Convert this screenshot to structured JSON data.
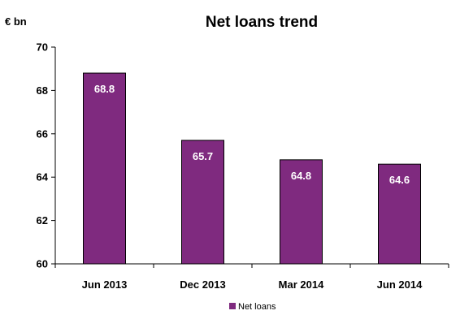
{
  "chart_data": {
    "type": "bar",
    "title": "Net loans trend",
    "unit_label": "€ bn",
    "categories": [
      "Jun 2013",
      "Dec 2013",
      "Mar 2014",
      "Jun 2014"
    ],
    "series": [
      {
        "name": "Net loans",
        "values": [
          68.8,
          65.7,
          64.8,
          64.6
        ],
        "color": "#7F2A7F"
      }
    ],
    "data_labels": [
      "68.8",
      "65.7",
      "64.8",
      "64.6"
    ],
    "ylim": [
      60,
      70
    ],
    "yticks": [
      "60",
      "62",
      "64",
      "66",
      "68",
      "70"
    ],
    "grid": false,
    "legend_position": "bottom-center"
  }
}
